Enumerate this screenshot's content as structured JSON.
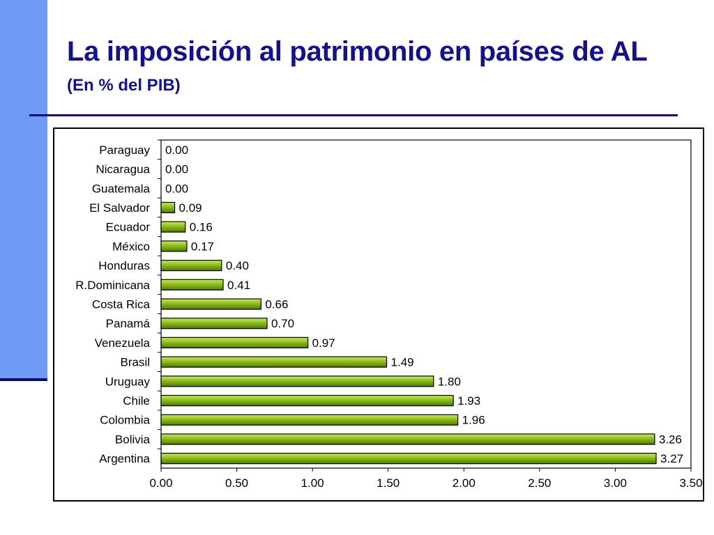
{
  "slide": {
    "title": "La imposición al patrimonio en países de AL",
    "subtitle": "(En % del PIB)"
  },
  "colors": {
    "accent_bar": "#6f9af6",
    "title_color": "#13128a",
    "rule_color": "#0c0c6e",
    "bar_fill": "#8fbf1a",
    "bar_stroke": "#000000"
  },
  "chart_data": {
    "type": "bar",
    "orientation": "horizontal",
    "title": "",
    "xlabel": "",
    "ylabel": "",
    "xlim": [
      0,
      3.5
    ],
    "xticks": [
      "0.00",
      "0.50",
      "1.00",
      "1.50",
      "2.00",
      "2.50",
      "3.00",
      "3.50"
    ],
    "grid": false,
    "legend": "none",
    "categories": [
      "Paraguay",
      "Nicaragua",
      "Guatemala",
      "El Salvador",
      "Ecuador",
      "México",
      "Honduras",
      "R.Dominicana",
      "Costa Rica",
      "Panamá",
      "Venezuela",
      "Brasil",
      "Uruguay",
      "Chile",
      "Colombia",
      "Bolivia",
      "Argentina"
    ],
    "values": [
      0.0,
      0.0,
      0.0,
      0.09,
      0.16,
      0.17,
      0.4,
      0.41,
      0.66,
      0.7,
      0.97,
      1.49,
      1.8,
      1.93,
      1.96,
      3.26,
      3.27
    ],
    "value_labels": [
      "0.00",
      "0.00",
      "0.00",
      "0.09",
      "0.16",
      "0.17",
      "0.40",
      "0.41",
      "0.66",
      "0.70",
      "0.97",
      "1.49",
      "1.80",
      "1.93",
      "1.96",
      "3.26",
      "3.27"
    ]
  }
}
